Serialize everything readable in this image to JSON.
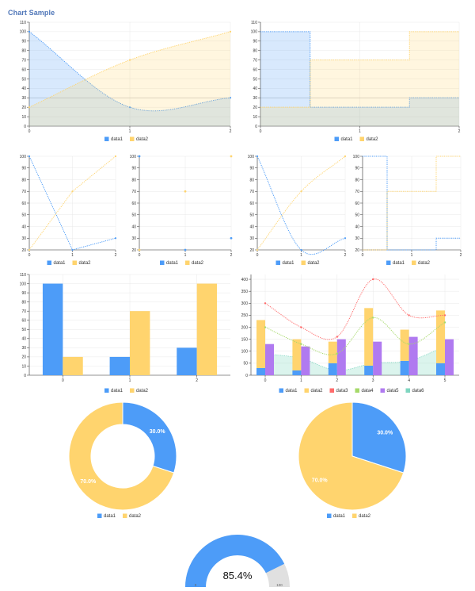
{
  "page": {
    "title": "Chart Sample"
  },
  "colors": {
    "data1": "#4d9cf8",
    "data2": "#ffd46e",
    "data3": "#ff6b6b",
    "data4": "#a6d96a",
    "data5": "#b07af0",
    "data6": "#7fd6c0",
    "gauge_bg": "#e0e0e0"
  },
  "chart_data": [
    {
      "type": "area",
      "name": "area-spline",
      "interpolation": "spline",
      "x": [
        0,
        1,
        2
      ],
      "series": [
        {
          "name": "data1",
          "values": [
            100,
            20,
            30
          ]
        },
        {
          "name": "data2",
          "values": [
            20,
            70,
            100
          ]
        }
      ],
      "ylim": [
        0,
        110
      ],
      "yticks": [
        0,
        10,
        20,
        30,
        40,
        50,
        60,
        70,
        80,
        90,
        100,
        110
      ],
      "xticks": [
        0,
        1,
        2
      ],
      "grid": true,
      "grid_y_line": 30,
      "legend": "bottom",
      "legend_items": [
        "data1",
        "data2"
      ]
    },
    {
      "type": "area",
      "name": "area-step",
      "interpolation": "step",
      "x": [
        0,
        1,
        2
      ],
      "series": [
        {
          "name": "data1",
          "values": [
            100,
            20,
            30
          ]
        },
        {
          "name": "data2",
          "values": [
            20,
            70,
            100
          ]
        }
      ],
      "ylim": [
        0,
        110
      ],
      "yticks": [
        0,
        10,
        20,
        30,
        40,
        50,
        60,
        70,
        80,
        90,
        100,
        110
      ],
      "xticks": [
        0,
        1,
        2
      ],
      "grid": true,
      "grid_y_line": 30,
      "legend": "bottom",
      "legend_items": [
        "data1",
        "data2"
      ]
    },
    {
      "type": "line",
      "name": "line",
      "interpolation": "linear",
      "x": [
        0,
        1,
        2
      ],
      "series": [
        {
          "name": "data1",
          "values": [
            100,
            20,
            30
          ]
        },
        {
          "name": "data2",
          "values": [
            20,
            70,
            100
          ]
        }
      ],
      "ylim": [
        20,
        100
      ],
      "yticks": [
        20,
        30,
        40,
        50,
        60,
        70,
        80,
        90,
        100
      ],
      "xticks": [
        0,
        1,
        2
      ],
      "grid": true,
      "legend": "bottom",
      "legend_items": [
        "data1",
        "data2"
      ]
    },
    {
      "type": "scatter",
      "name": "scatter",
      "x": [
        0,
        1,
        2
      ],
      "series": [
        {
          "name": "data1",
          "values": [
            100,
            20,
            30
          ]
        },
        {
          "name": "data2",
          "values": [
            20,
            70,
            100
          ]
        }
      ],
      "ylim": [
        20,
        100
      ],
      "yticks": [
        20,
        30,
        40,
        50,
        60,
        70,
        80,
        90,
        100
      ],
      "xticks": [
        0,
        1,
        2
      ],
      "grid": true,
      "legend": "bottom",
      "legend_items": [
        "data1",
        "data2"
      ]
    },
    {
      "type": "line",
      "name": "spline",
      "interpolation": "spline",
      "x": [
        0,
        1,
        2
      ],
      "series": [
        {
          "name": "data1",
          "values": [
            100,
            20,
            30
          ]
        },
        {
          "name": "data2",
          "values": [
            20,
            70,
            100
          ]
        }
      ],
      "ylim": [
        20,
        100
      ],
      "yticks": [
        20,
        30,
        40,
        50,
        60,
        70,
        80,
        90,
        100
      ],
      "xticks": [
        0,
        1,
        2
      ],
      "grid": true,
      "legend": "bottom",
      "legend_items": [
        "data1",
        "data2"
      ]
    },
    {
      "type": "line",
      "name": "step",
      "interpolation": "step",
      "x": [
        0,
        1,
        2
      ],
      "series": [
        {
          "name": "data1",
          "values": [
            100,
            20,
            30
          ]
        },
        {
          "name": "data2",
          "values": [
            20,
            70,
            100
          ]
        }
      ],
      "ylim": [
        20,
        100
      ],
      "yticks": [
        20,
        30,
        40,
        50,
        60,
        70,
        80,
        90,
        100
      ],
      "xticks": [
        0,
        1,
        2
      ],
      "grid": true,
      "legend": "bottom",
      "legend_items": [
        "data1",
        "data2"
      ]
    },
    {
      "type": "bar",
      "name": "bar",
      "categories": [
        0,
        1,
        2
      ],
      "series": [
        {
          "name": "data1",
          "values": [
            100,
            20,
            30
          ]
        },
        {
          "name": "data2",
          "values": [
            20,
            70,
            100
          ]
        }
      ],
      "ylim": [
        0,
        110
      ],
      "yticks": [
        0,
        10,
        20,
        30,
        40,
        50,
        60,
        70,
        80,
        90,
        100,
        110
      ],
      "grid": true,
      "legend": "bottom",
      "legend_items": [
        "data1",
        "data2"
      ]
    },
    {
      "type": "bar",
      "name": "combination",
      "categories": [
        0,
        1,
        2,
        3,
        4,
        5
      ],
      "series": [
        {
          "name": "data1",
          "type": "bar",
          "stack": "a",
          "values": [
            30,
            20,
            50,
            40,
            60,
            50
          ]
        },
        {
          "name": "data2",
          "type": "bar",
          "stack": "a",
          "values": [
            200,
            130,
            90,
            240,
            130,
            220
          ]
        },
        {
          "name": "data3",
          "type": "spline",
          "values": [
            300,
            200,
            160,
            400,
            250,
            250
          ]
        },
        {
          "name": "data4",
          "type": "spline",
          "values": [
            200,
            130,
            90,
            240,
            130,
            220
          ]
        },
        {
          "name": "data5",
          "type": "bar",
          "values": [
            130,
            120,
            150,
            140,
            160,
            150
          ]
        },
        {
          "name": "data6",
          "type": "area",
          "values": [
            90,
            70,
            20,
            50,
            60,
            120
          ]
        }
      ],
      "ylim": [
        0,
        420
      ],
      "yticks": [
        0,
        50,
        100,
        150,
        200,
        250,
        300,
        350,
        400
      ],
      "grid": true,
      "legend": "bottom",
      "legend_items": [
        "data1",
        "data2",
        "data3",
        "data4",
        "data5",
        "data6"
      ]
    },
    {
      "type": "pie",
      "name": "donut",
      "values": [
        {
          "name": "data1",
          "value": 30
        },
        {
          "name": "data2",
          "value": 70
        }
      ],
      "labels": [
        "30.0%",
        "70.0%"
      ],
      "legend": "bottom",
      "legend_items": [
        "data1",
        "data2"
      ]
    },
    {
      "type": "pie",
      "name": "pie",
      "values": [
        {
          "name": "data1",
          "value": 30
        },
        {
          "name": "data2",
          "value": 70
        }
      ],
      "labels": [
        "30.0%",
        "70.0%"
      ],
      "legend": "bottom",
      "legend_items": [
        "data1",
        "data2"
      ]
    },
    {
      "type": "gauge",
      "name": "gauge",
      "value": 85.4,
      "min": 0,
      "max": 100,
      "label": "85.4%",
      "min_label": "0",
      "max_label": "100"
    }
  ]
}
